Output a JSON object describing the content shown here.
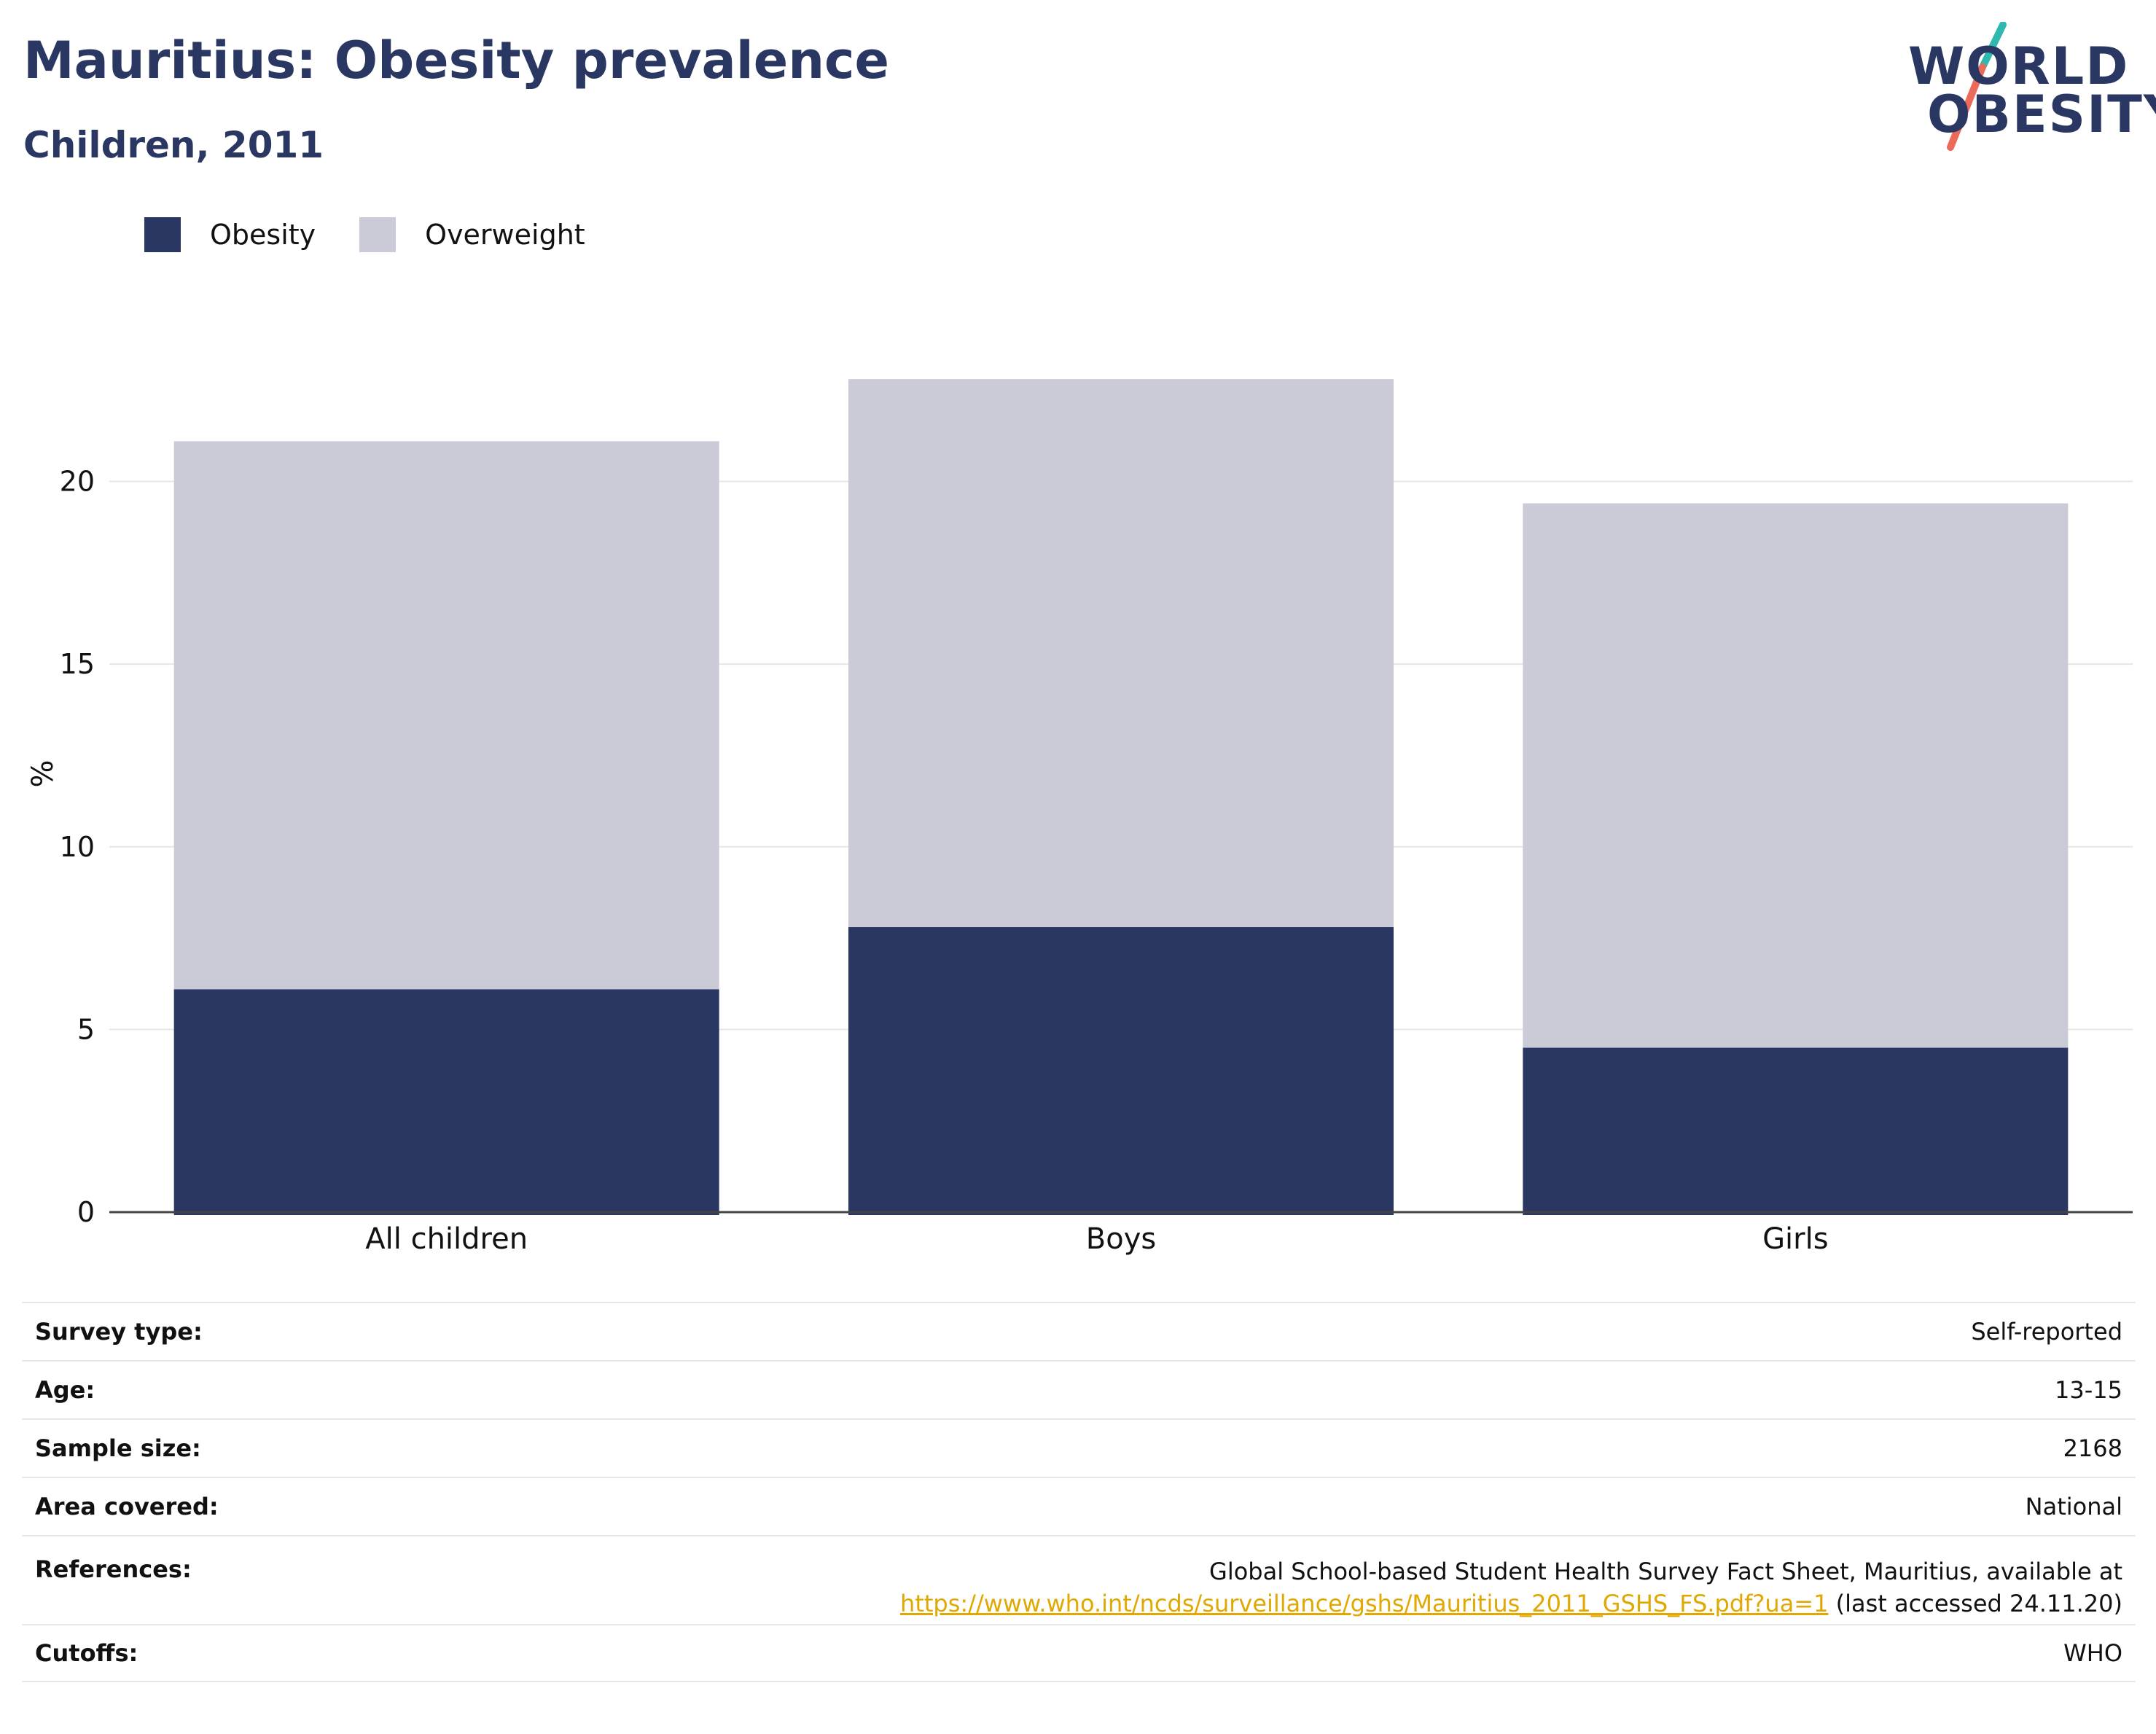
{
  "title": "Mauritius: Obesity prevalence",
  "subtitle": "Children, 2011",
  "logo": {
    "line1": "WORLD",
    "line2": "OBESITY"
  },
  "colors": {
    "obesity": "#2a3762",
    "overweight": "#cacbd7",
    "title": "#2a3762",
    "link": "#e0a800",
    "logo_teal": "#2fb8b0",
    "logo_coral": "#ec6a5a"
  },
  "chart_data": {
    "type": "bar",
    "stacked": true,
    "categories": [
      "All children",
      "Boys",
      "Girls"
    ],
    "series": [
      {
        "name": "Obesity",
        "values": [
          6.1,
          7.8,
          4.5
        ]
      },
      {
        "name": "Overweight",
        "values": [
          15.0,
          15.0,
          14.9
        ]
      }
    ],
    "ylabel": "%",
    "xlabel": "",
    "ylim": [
      0,
      24
    ],
    "yticks": [
      0,
      5,
      10,
      15,
      20
    ],
    "grid": true,
    "legend": "top-left"
  },
  "info": {
    "rows": [
      {
        "label": "Survey type:",
        "value": "Self-reported"
      },
      {
        "label": "Age:",
        "value": "13-15"
      },
      {
        "label": "Sample size:",
        "value": "2168"
      },
      {
        "label": "Area covered:",
        "value": "National"
      },
      {
        "label": "References:",
        "value": "Global School-based Student Health Survey Fact Sheet, Mauritius, available at",
        "link": "https://www.who.int/ncds/surveillance/gshs/Mauritius_2011_GSHS_FS.pdf?ua=1",
        "suffix": " (last accessed 24.11.20)"
      },
      {
        "label": "Cutoffs:",
        "value": "WHO"
      }
    ]
  }
}
